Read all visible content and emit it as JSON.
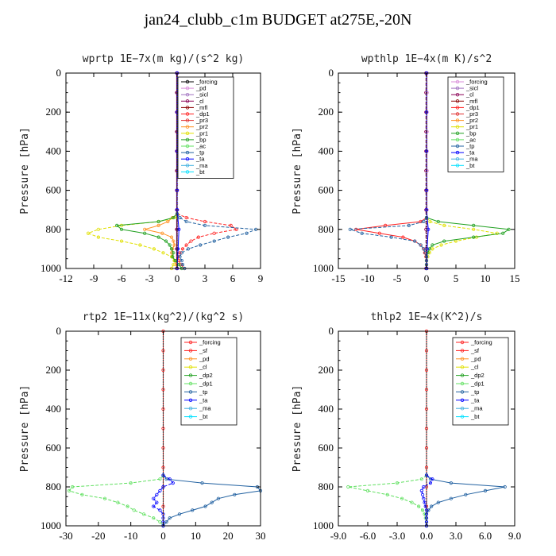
{
  "figure_title": "jan24_clubb_c1m  BUDGET at275E,-20N",
  "chart_data": [
    {
      "type": "line",
      "title": "wprtp  1E−7x(m kg)/(s^2 kg)",
      "ylabel": "Pressure [hPa]",
      "ylim": [
        0,
        1000
      ],
      "yticks": [
        "0",
        "200",
        "400",
        "600",
        "800",
        "1000"
      ],
      "xlim": [
        -12,
        9
      ],
      "xticks": [
        -12,
        -9,
        -6,
        -3,
        0,
        3,
        6,
        9
      ],
      "xtick_labels": [
        "-12",
        "-9",
        "-6",
        "-3",
        "0",
        "3",
        "6",
        "9"
      ],
      "legend": [
        "_forcing",
        "_pd",
        "_sicl",
        "_cl",
        "_mfl",
        "_dp1",
        "_pr3",
        "_pr2",
        "_pr1",
        "_bp",
        "_ac",
        "_tp",
        "_ta",
        "_ma",
        "_bt"
      ],
      "series_colors": [
        "#000000",
        "#d98bd9",
        "#a070c0",
        "#8b0055",
        "#8b0000",
        "#ff2020",
        "#e03030",
        "#ff9020",
        "#e0e000",
        "#20a020",
        "#60e060",
        "#2060a0",
        "#0000ff",
        "#40b0e0",
        "#00e0ff"
      ],
      "series": [
        {
          "y": [
            0,
            100,
            200,
            300,
            400,
            500,
            600,
            700,
            800,
            900,
            1000
          ],
          "values": [
            0,
            0,
            0,
            0,
            0,
            0,
            0,
            0,
            0,
            0,
            0
          ],
          "color": "#000000"
        },
        {
          "y": [
            0,
            100,
            200,
            300,
            400,
            500,
            600,
            700,
            800,
            900,
            1000
          ],
          "values": [
            0.05,
            0.05,
            0.05,
            0.05,
            0.05,
            0.05,
            0.05,
            0.05,
            0.05,
            0.05,
            0.05
          ],
          "color": "#d98bd9"
        },
        {
          "y": [
            0,
            100,
            200,
            300,
            400,
            500,
            600,
            700,
            800,
            900,
            1000
          ],
          "values": [
            -0.05,
            -0.05,
            -0.05,
            -0.05,
            -0.05,
            -0.05,
            -0.05,
            -0.05,
            -0.05,
            -0.05,
            -0.05
          ],
          "color": "#8b0055"
        },
        {
          "y": [
            720,
            740,
            760,
            780,
            800,
            820,
            840,
            860,
            880,
            900,
            920,
            940,
            960,
            980,
            1000
          ],
          "values": [
            0,
            1,
            3,
            5.8,
            6.4,
            4,
            2.3,
            1.5,
            1,
            0.6,
            0.3,
            0.1,
            0.2,
            0.4,
            0.8
          ],
          "color": "#ff2020"
        },
        {
          "y": [
            720,
            740,
            760,
            780,
            800,
            820,
            840,
            860,
            880,
            900,
            920,
            940,
            960,
            980,
            1000
          ],
          "values": [
            0,
            -0.5,
            -1,
            -2,
            -3.5,
            -1.6,
            -0.6,
            -0.4,
            -0.3,
            -0.5,
            -0.6,
            -0.5,
            -0.3,
            -0.1,
            0
          ],
          "color": "#ff9020"
        },
        {
          "y": [
            740,
            760,
            780,
            800,
            820,
            840,
            860,
            880,
            900,
            920,
            940,
            960,
            980,
            1000
          ],
          "values": [
            0,
            -2,
            -6,
            -8.5,
            -9.6,
            -8.5,
            -6,
            -4,
            -2.5,
            -1.5,
            -0.6,
            -0.3,
            -0.4,
            -0.6
          ],
          "color": "#e0e000"
        },
        {
          "y": [
            720,
            740,
            760,
            780,
            800,
            820,
            840,
            860,
            880,
            900,
            920,
            940,
            960,
            980,
            1000
          ],
          "values": [
            0,
            -0.4,
            -2,
            -6.5,
            -6,
            -3.5,
            -2,
            -1.2,
            -0.8,
            -0.6,
            -0.4,
            -0.5,
            -0.2,
            0.2,
            0.5
          ],
          "color": "#20a020"
        },
        {
          "y": [
            720,
            740,
            760,
            780,
            800,
            820,
            840,
            860,
            880,
            900,
            920,
            940,
            960,
            980,
            1000
          ],
          "values": [
            0,
            0.3,
            1,
            3,
            8.5,
            7.5,
            5.5,
            4,
            2.5,
            1.2,
            0.5,
            0.3,
            0.5,
            0.6,
            0.8
          ],
          "color": "#2060a0"
        },
        {
          "y": [
            0,
            200,
            400,
            600,
            700,
            800,
            900,
            1000
          ],
          "values": [
            0,
            0,
            0,
            0,
            0,
            0.2,
            0.1,
            0
          ],
          "color": "#0000ff"
        }
      ]
    },
    {
      "type": "line",
      "title": "wpthlp  1E−4x(m K)/s^2",
      "ylabel": "Pressure [hPa]",
      "ylim": [
        0,
        1000
      ],
      "yticks": [
        "0",
        "200",
        "400",
        "600",
        "800",
        "1000"
      ],
      "xlim": [
        -15,
        15
      ],
      "xticks": [
        -15,
        -10,
        -5,
        0,
        5,
        10,
        15
      ],
      "xtick_labels": [
        "-15",
        "-10",
        "-5",
        "0",
        "5",
        "10",
        "15"
      ],
      "legend": [
        "_forcing",
        "_sicl",
        "_cl",
        "_mfl",
        "_dp1",
        "_pr3",
        "_pr2",
        "_pr1",
        "_bp",
        "_ac",
        "_tp",
        "_ta",
        "_ma",
        "_bt"
      ],
      "series_colors": [
        "#d98bd9",
        "#a070c0",
        "#8b0055",
        "#8b0000",
        "#ff2020",
        "#e03030",
        "#ff9020",
        "#e0e000",
        "#20a020",
        "#60e060",
        "#2060a0",
        "#0000ff",
        "#40b0e0",
        "#00e0ff"
      ],
      "series": [
        {
          "y": [
            0,
            100,
            200,
            300,
            400,
            500,
            600,
            700,
            800,
            900,
            1000
          ],
          "values": [
            0.1,
            0.1,
            0.1,
            0.1,
            0.1,
            0.1,
            0.1,
            0.1,
            0.1,
            0.1,
            0.1
          ],
          "color": "#d98bd9"
        },
        {
          "y": [
            0,
            100,
            200,
            300,
            400,
            500,
            600,
            700,
            800,
            900,
            1000
          ],
          "values": [
            -0.1,
            -0.1,
            -0.1,
            -0.1,
            -0.1,
            -0.1,
            -0.1,
            -0.1,
            -0.1,
            -0.1,
            -0.1
          ],
          "color": "#8b0055"
        },
        {
          "y": [
            740,
            760,
            780,
            800,
            820,
            840,
            860,
            880,
            900,
            920,
            940,
            960,
            980,
            1000
          ],
          "values": [
            0,
            -1,
            -7,
            -12,
            -8,
            -4,
            -2,
            -1,
            -0.5,
            -0.3,
            -0.1,
            0,
            0,
            0
          ],
          "color": "#ff2020"
        },
        {
          "y": [
            740,
            760,
            780,
            800,
            820,
            840,
            860,
            880,
            900,
            920,
            940,
            960,
            980,
            1000
          ],
          "values": [
            0,
            0.6,
            3,
            8,
            12,
            8.5,
            5,
            2.5,
            1,
            0.5,
            0.2,
            0,
            0,
            0
          ],
          "color": "#e0e000"
        },
        {
          "y": [
            740,
            760,
            780,
            800,
            820,
            840,
            860,
            880,
            900,
            920,
            940,
            960,
            980,
            1000
          ],
          "values": [
            0,
            2,
            8,
            14,
            13,
            8,
            3,
            1,
            0.5,
            0.2,
            0,
            0,
            0,
            0
          ],
          "color": "#20a020"
        },
        {
          "y": [
            740,
            760,
            780,
            800,
            820,
            840,
            860,
            880,
            900,
            920,
            940,
            960,
            980,
            1000
          ],
          "values": [
            0,
            -0.5,
            -3,
            -13,
            -11,
            -6,
            -2,
            -1,
            -0.5,
            -0.2,
            0,
            0,
            0,
            0
          ],
          "color": "#2060a0"
        },
        {
          "y": [
            0,
            200,
            400,
            600,
            700,
            800,
            900,
            1000
          ],
          "values": [
            0,
            0,
            0,
            0,
            0,
            0.3,
            0.1,
            0
          ],
          "color": "#0000ff"
        }
      ]
    },
    {
      "type": "line",
      "title": "rtp2  1E−11x(kg^2)/(kg^2 s)",
      "ylabel": "Pressure [hPa]",
      "ylim": [
        0,
        1000
      ],
      "yticks": [
        "0",
        "200",
        "400",
        "600",
        "800",
        "1000"
      ],
      "xlim": [
        -30,
        30
      ],
      "xticks": [
        -30,
        -20,
        -10,
        0,
        10,
        20,
        30
      ],
      "xtick_labels": [
        "-30",
        "-20",
        "-10",
        "0",
        "10",
        "20",
        "30"
      ],
      "legend": [
        "_forcing",
        "_sf",
        "_pd",
        "_cl",
        "_dp2",
        "_dp1",
        "_tp",
        "_ta",
        "_ma",
        "_bt"
      ],
      "series_colors": [
        "#ff2020",
        "#ff2020",
        "#ff9020",
        "#e0e000",
        "#20a020",
        "#60e060",
        "#2060a0",
        "#0000ff",
        "#40b0e0",
        "#00e0ff"
      ],
      "series": [
        {
          "y": [
            0,
            100,
            200,
            300,
            400,
            500,
            600,
            700,
            800,
            900,
            1000
          ],
          "values": [
            0,
            0,
            0,
            0,
            0,
            0,
            0,
            0,
            0,
            0,
            0
          ],
          "color": "#ff2020"
        },
        {
          "y": [
            740,
            760,
            780,
            800,
            820,
            840,
            860,
            880,
            900,
            920,
            940,
            960,
            980,
            1000
          ],
          "values": [
            0,
            -1,
            -10,
            -28,
            -29,
            -25,
            -18,
            -14,
            -11,
            -9,
            -6,
            -3,
            -1,
            0
          ],
          "color": "#60e060"
        },
        {
          "y": [
            740,
            760,
            780,
            800,
            820,
            840,
            860,
            880,
            900,
            920,
            940,
            960,
            980,
            1000
          ],
          "values": [
            0,
            1,
            12,
            29,
            30,
            22,
            17,
            15,
            13,
            9,
            5,
            2,
            1,
            0
          ],
          "color": "#2060a0"
        },
        {
          "y": [
            740,
            760,
            780,
            800,
            820,
            840,
            860,
            880,
            900,
            920,
            940,
            960,
            980,
            1000
          ],
          "values": [
            0,
            2,
            3,
            0,
            -1,
            -2,
            -3,
            -2,
            -3,
            -1,
            0,
            0,
            0,
            0
          ],
          "color": "#0000ff"
        }
      ]
    },
    {
      "type": "line",
      "title": "thlp2  1E−4x(K^2)/s",
      "ylabel": "Pressure [hPa]",
      "ylim": [
        0,
        1000
      ],
      "yticks": [
        "0",
        "200",
        "400",
        "600",
        "800",
        "1000"
      ],
      "xlim": [
        -9,
        9
      ],
      "xticks": [
        -9,
        -6,
        -3,
        0,
        3,
        6,
        9
      ],
      "xtick_labels": [
        "-9.0",
        "-6.0",
        "-3.0",
        "0.0",
        "3.0",
        "6.0",
        "9.0"
      ],
      "legend": [
        "_forcing",
        "_sf",
        "_pd",
        "_cl",
        "_dp2",
        "_dp1",
        "_tp",
        "_ta",
        "_ma",
        "_bt"
      ],
      "series_colors": [
        "#ff2020",
        "#ff2020",
        "#ff9020",
        "#e0e000",
        "#20a020",
        "#60e060",
        "#2060a0",
        "#0000ff",
        "#40b0e0",
        "#00e0ff"
      ],
      "series": [
        {
          "y": [
            0,
            100,
            200,
            300,
            400,
            500,
            600,
            700,
            800,
            900,
            1000
          ],
          "values": [
            0,
            0,
            0,
            0,
            0,
            0,
            0,
            0,
            0,
            0,
            0
          ],
          "color": "#ff2020"
        },
        {
          "y": [
            740,
            760,
            780,
            800,
            820,
            840,
            860,
            880,
            900,
            920,
            940,
            960,
            980,
            1000
          ],
          "values": [
            0,
            -0.5,
            -3,
            -8,
            -6,
            -4,
            -2.5,
            -1.5,
            -0.8,
            -0.4,
            -0.2,
            -0.1,
            0,
            0
          ],
          "color": "#60e060"
        },
        {
          "y": [
            740,
            760,
            780,
            800,
            820,
            840,
            860,
            880,
            900,
            920,
            940,
            960,
            980,
            1000
          ],
          "values": [
            0,
            0.4,
            2.5,
            8,
            6,
            4,
            2.5,
            1.2,
            0.5,
            0.2,
            0,
            0,
            0,
            0
          ],
          "color": "#2060a0"
        },
        {
          "y": [
            740,
            760,
            780,
            800,
            820,
            840,
            860,
            880,
            900,
            920,
            940,
            960,
            980,
            1000
          ],
          "values": [
            0,
            0.6,
            0.4,
            -0.3,
            -0.5,
            -0.4,
            -0.3,
            -0.2,
            -0.1,
            0,
            0,
            0,
            0,
            0
          ],
          "color": "#0000ff"
        }
      ]
    }
  ]
}
